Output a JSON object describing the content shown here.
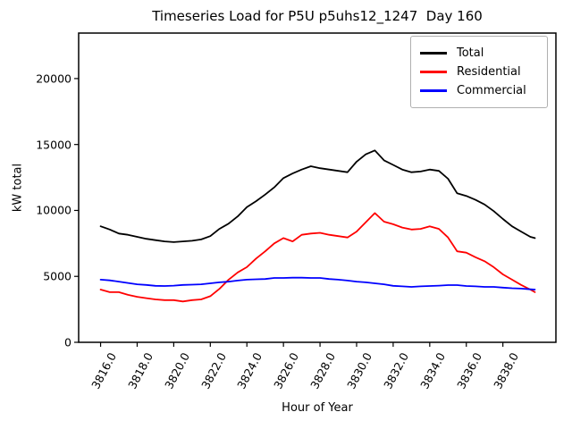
{
  "chart_data": {
    "type": "line",
    "title": "Timeseries Load for P5U p5uhs12_1247  Day 160",
    "xlabel": "Hour of Year",
    "ylabel": "kW total",
    "grid": false,
    "legend_position": "upper right",
    "xlim": [
      3814.8,
      3840.9
    ],
    "ylim": [
      0,
      23450
    ],
    "xticks": [
      3816,
      3818,
      3820,
      3822,
      3824,
      3826,
      3828,
      3830,
      3832,
      3834,
      3836,
      3838
    ],
    "xtick_labels": [
      "3816.0",
      "3818.0",
      "3820.0",
      "3822.0",
      "3824.0",
      "3826.0",
      "3828.0",
      "3830.0",
      "3832.0",
      "3834.0",
      "3836.0",
      "3838.0"
    ],
    "yticks": [
      0,
      5000,
      10000,
      15000,
      20000
    ],
    "ytick_labels": [
      "0",
      "5000",
      "10000",
      "15000",
      "20000"
    ],
    "x": [
      3816.0,
      3816.5,
      3817.0,
      3817.5,
      3818.0,
      3818.5,
      3819.0,
      3819.5,
      3820.0,
      3820.5,
      3821.0,
      3821.5,
      3822.0,
      3822.5,
      3823.0,
      3823.5,
      3824.0,
      3824.5,
      3825.0,
      3825.5,
      3826.0,
      3826.5,
      3827.0,
      3827.5,
      3828.0,
      3828.5,
      3829.0,
      3829.5,
      3830.0,
      3830.5,
      3831.0,
      3831.5,
      3832.0,
      3832.5,
      3833.0,
      3833.5,
      3834.0,
      3834.5,
      3835.0,
      3835.5,
      3836.0,
      3836.5,
      3837.0,
      3837.5,
      3838.0,
      3838.5,
      3839.0,
      3839.5,
      3839.75
    ],
    "series": [
      {
        "name": "Total",
        "color": "#000000",
        "values": [
          8800,
          8550,
          8250,
          8150,
          8000,
          7850,
          7750,
          7650,
          7600,
          7650,
          7700,
          7800,
          8050,
          8600,
          9000,
          9550,
          10250,
          10700,
          11200,
          11750,
          12450,
          12800,
          13100,
          13350,
          13200,
          13100,
          13000,
          12900,
          13700,
          14250,
          14550,
          13800,
          13450,
          13100,
          12900,
          12950,
          13100,
          13000,
          12400,
          11300,
          11100,
          10800,
          10450,
          9950,
          9350,
          8800,
          8400,
          8000,
          7900
        ]
      },
      {
        "name": "Residential",
        "color": "#ff0000",
        "values": [
          4000,
          3800,
          3800,
          3600,
          3450,
          3350,
          3250,
          3200,
          3200,
          3100,
          3200,
          3250,
          3500,
          4050,
          4750,
          5300,
          5700,
          6350,
          6900,
          7500,
          7900,
          7650,
          8150,
          8250,
          8300,
          8150,
          8050,
          7950,
          8400,
          9100,
          9800,
          9150,
          8950,
          8700,
          8550,
          8600,
          8800,
          8600,
          7950,
          6900,
          6800,
          6450,
          6150,
          5700,
          5150,
          4750,
          4350,
          4000,
          3800
        ]
      },
      {
        "name": "Commercial",
        "color": "#0000ff",
        "values": [
          4750,
          4700,
          4600,
          4500,
          4400,
          4350,
          4280,
          4270,
          4300,
          4350,
          4370,
          4400,
          4470,
          4550,
          4600,
          4680,
          4750,
          4780,
          4800,
          4880,
          4880,
          4900,
          4900,
          4880,
          4880,
          4800,
          4750,
          4680,
          4600,
          4550,
          4470,
          4400,
          4280,
          4240,
          4200,
          4240,
          4270,
          4300,
          4340,
          4340,
          4270,
          4240,
          4200,
          4200,
          4150,
          4100,
          4070,
          4020,
          4000
        ]
      }
    ]
  }
}
